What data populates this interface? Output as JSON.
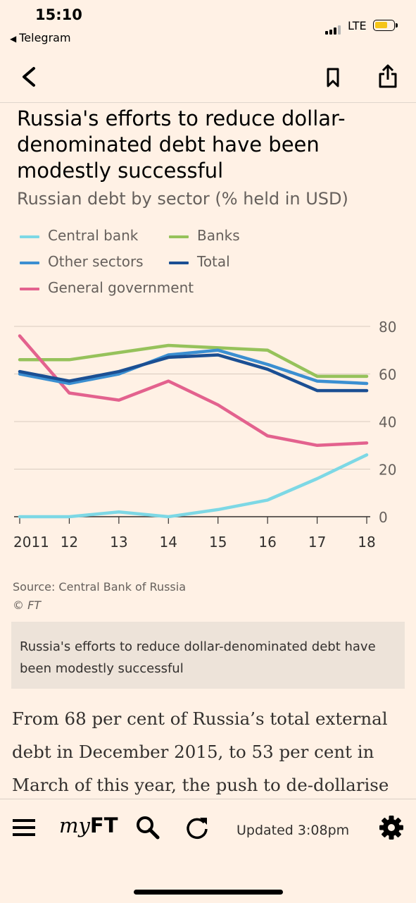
{
  "status_bar": {
    "time": "15:10",
    "back_app": "Telegram",
    "network": "LTE",
    "battery_color": "#f5c518"
  },
  "nav": {
    "back_icon": "chevron-left-icon",
    "bookmark_icon": "bookmark-icon",
    "share_icon": "share-icon"
  },
  "article": {
    "headline": "Russia's efforts to reduce dollar-denominated debt have been modestly successful",
    "subtitle": "Russian debt by sector (% held in USD)",
    "source": "Source: Central Bank of Russia",
    "copyright": "© FT",
    "caption": "Russia's efforts to reduce dollar-denominated debt have been modestly successful",
    "body": "From 68 per cent of Russia’s total external debt in December 2015, to 53 per cent in March of this year, the push to de-dollarise"
  },
  "chart_data": {
    "type": "line",
    "title": "Russia's efforts to reduce dollar-denominated debt have been modestly successful",
    "subtitle": "Russian debt by sector (% held in USD)",
    "x": [
      "2011",
      "12",
      "13",
      "14",
      "15",
      "16",
      "17",
      "18"
    ],
    "ylim": [
      0,
      80
    ],
    "yticks": [
      0,
      20,
      40,
      60,
      80
    ],
    "grid": true,
    "y_axis_position": "right",
    "legend_placement": "top-left",
    "series": [
      {
        "name": "Central bank",
        "color": "#7dd8e5",
        "values": [
          0,
          0,
          2,
          0,
          3,
          7,
          16,
          26
        ]
      },
      {
        "name": "Banks",
        "color": "#96c25b",
        "values": [
          66,
          66,
          69,
          72,
          71,
          70,
          59,
          59
        ]
      },
      {
        "name": "Other sectors",
        "color": "#3b8fd1",
        "values": [
          60,
          56,
          60,
          68,
          70,
          64,
          57,
          56
        ]
      },
      {
        "name": "Total",
        "color": "#1b4f93",
        "values": [
          61,
          57,
          61,
          67,
          68,
          62,
          53,
          53
        ]
      },
      {
        "name": "General government",
        "color": "#e3628e",
        "values": [
          76,
          52,
          49,
          57,
          47,
          34,
          30,
          31
        ]
      }
    ]
  },
  "tab_bar": {
    "myft_prefix": "my",
    "myft_suffix": "FT",
    "updated": "Updated 3:08pm",
    "menu_icon": "hamburger-menu-icon",
    "search_icon": "search-icon",
    "refresh_icon": "refresh-icon",
    "settings_icon": "gear-icon"
  }
}
